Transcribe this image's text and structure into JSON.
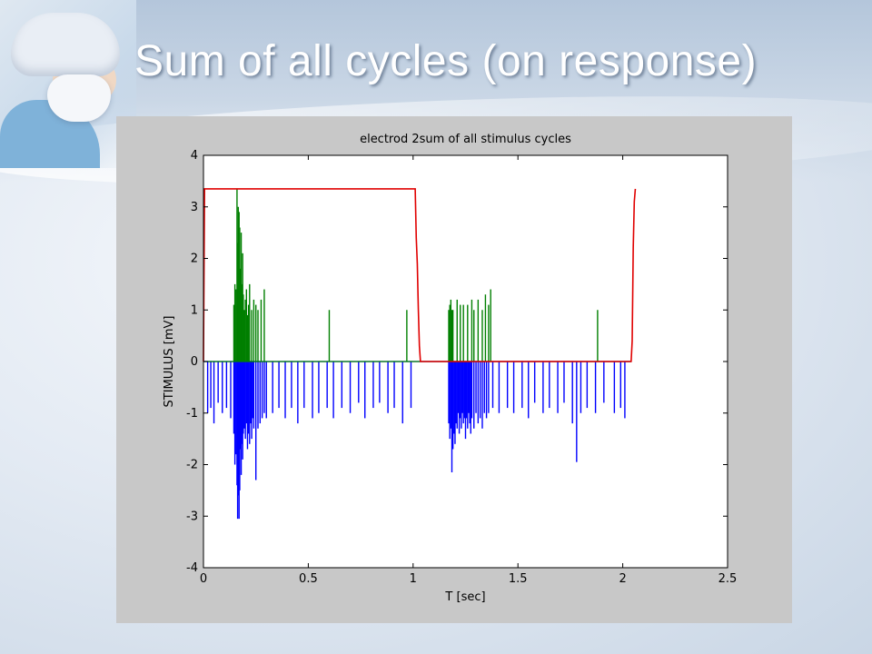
{
  "slide": {
    "title": "Sum of all cycles (on response)"
  },
  "chart_data": {
    "type": "line",
    "title": "electrod 2sum of all stimulus cycles",
    "xlabel": "T [sec]",
    "ylabel": "STIMULUS [mV]",
    "xlim": [
      0,
      2.5
    ],
    "ylim": [
      -4,
      4
    ],
    "xticks": [
      0,
      0.5,
      1,
      1.5,
      2,
      2.5
    ],
    "xtick_labels": [
      "0",
      "0.5",
      "1",
      "1.5",
      "2",
      "2.5"
    ],
    "yticks": [
      4,
      3,
      2,
      1,
      0,
      -1,
      -2,
      -3,
      -4
    ],
    "ytick_labels": [
      "4",
      "3",
      "2",
      "1",
      "0",
      "-1",
      "-2",
      "-3",
      "-4"
    ],
    "grid": false,
    "legend": "none",
    "colors": {
      "red": "#e00000",
      "green": "#007f00",
      "blue": "#0000ff",
      "plot_bg": "#ffffff",
      "figure_bg": "#c8c8c8"
    },
    "series": [
      {
        "color": "#e00000",
        "x": [
          0,
          0.005,
          0.01,
          1.0,
          1.01,
          1.015,
          1.02,
          1.025,
          1.03,
          1.035,
          1.04,
          2.04,
          2.045,
          2.05,
          2.055,
          2.06
        ],
        "y": [
          0,
          3.35,
          3.35,
          3.35,
          3.35,
          2.4,
          1.9,
          1.0,
          0.3,
          0,
          0,
          0,
          0.4,
          2.2,
          3.1,
          3.35
        ]
      },
      {
        "color": "#007f00",
        "baseline": 0,
        "impulses": [
          [
            0.145,
            1.1
          ],
          [
            0.15,
            1.5
          ],
          [
            0.155,
            1.4
          ],
          [
            0.16,
            3.35
          ],
          [
            0.163,
            2.3
          ],
          [
            0.166,
            3.0
          ],
          [
            0.17,
            2.9
          ],
          [
            0.173,
            2.6
          ],
          [
            0.177,
            1.8
          ],
          [
            0.18,
            2.5
          ],
          [
            0.183,
            1.5
          ],
          [
            0.187,
            2.1
          ],
          [
            0.19,
            1.3
          ],
          [
            0.195,
            1.0
          ],
          [
            0.2,
            1.2
          ],
          [
            0.205,
            1.4
          ],
          [
            0.21,
            0.9
          ],
          [
            0.215,
            1.1
          ],
          [
            0.22,
            1.5
          ],
          [
            0.23,
            1.0
          ],
          [
            0.24,
            1.2
          ],
          [
            0.25,
            1.1
          ],
          [
            0.26,
            1.0
          ],
          [
            0.275,
            1.2
          ],
          [
            0.29,
            1.4
          ],
          [
            0.6,
            1.0
          ],
          [
            0.97,
            1.0
          ],
          [
            1.17,
            1.0
          ],
          [
            1.175,
            1.1
          ],
          [
            1.18,
            1.2
          ],
          [
            1.185,
            1.0
          ],
          [
            1.19,
            1.0
          ],
          [
            1.21,
            1.2
          ],
          [
            1.225,
            1.1
          ],
          [
            1.24,
            1.1
          ],
          [
            1.26,
            1.1
          ],
          [
            1.28,
            1.2
          ],
          [
            1.29,
            1.0
          ],
          [
            1.31,
            1.2
          ],
          [
            1.33,
            1.0
          ],
          [
            1.345,
            1.3
          ],
          [
            1.36,
            1.1
          ],
          [
            1.37,
            1.4
          ],
          [
            1.88,
            1.0
          ]
        ]
      },
      {
        "color": "#0000ff",
        "baseline": 0,
        "impulses": [
          [
            0.02,
            -1.0
          ],
          [
            0.035,
            -0.9
          ],
          [
            0.05,
            -1.2
          ],
          [
            0.07,
            -0.8
          ],
          [
            0.09,
            -1.0
          ],
          [
            0.11,
            -0.9
          ],
          [
            0.13,
            -1.1
          ],
          [
            0.145,
            -1.4
          ],
          [
            0.15,
            -2.0
          ],
          [
            0.155,
            -1.8
          ],
          [
            0.16,
            -2.4
          ],
          [
            0.163,
            -3.05
          ],
          [
            0.166,
            -2.6
          ],
          [
            0.17,
            -3.05
          ],
          [
            0.173,
            -2.5
          ],
          [
            0.177,
            -1.7
          ],
          [
            0.18,
            -2.2
          ],
          [
            0.183,
            -1.6
          ],
          [
            0.187,
            -1.9
          ],
          [
            0.19,
            -1.4
          ],
          [
            0.195,
            -1.3
          ],
          [
            0.2,
            -1.5
          ],
          [
            0.205,
            -1.2
          ],
          [
            0.21,
            -1.7
          ],
          [
            0.215,
            -1.4
          ],
          [
            0.22,
            -1.6
          ],
          [
            0.225,
            -1.2
          ],
          [
            0.23,
            -1.5
          ],
          [
            0.235,
            -1.1
          ],
          [
            0.24,
            -1.3
          ],
          [
            0.25,
            -2.3
          ],
          [
            0.26,
            -1.3
          ],
          [
            0.27,
            -1.2
          ],
          [
            0.28,
            -1.1
          ],
          [
            0.29,
            -1.0
          ],
          [
            0.3,
            -1.1
          ],
          [
            0.33,
            -1.0
          ],
          [
            0.36,
            -0.9
          ],
          [
            0.39,
            -1.1
          ],
          [
            0.42,
            -0.9
          ],
          [
            0.45,
            -1.2
          ],
          [
            0.48,
            -0.9
          ],
          [
            0.52,
            -1.1
          ],
          [
            0.55,
            -1.0
          ],
          [
            0.59,
            -0.9
          ],
          [
            0.62,
            -1.1
          ],
          [
            0.66,
            -0.9
          ],
          [
            0.7,
            -1.0
          ],
          [
            0.74,
            -0.8
          ],
          [
            0.77,
            -1.1
          ],
          [
            0.81,
            -0.9
          ],
          [
            0.84,
            -0.8
          ],
          [
            0.88,
            -1.0
          ],
          [
            0.91,
            -0.9
          ],
          [
            0.95,
            -1.2
          ],
          [
            0.99,
            -0.9
          ],
          [
            1.17,
            -1.2
          ],
          [
            1.175,
            -1.5
          ],
          [
            1.18,
            -1.3
          ],
          [
            1.185,
            -2.15
          ],
          [
            1.19,
            -1.7
          ],
          [
            1.195,
            -1.4
          ],
          [
            1.2,
            -1.6
          ],
          [
            1.205,
            -1.2
          ],
          [
            1.21,
            -1.3
          ],
          [
            1.215,
            -1.0
          ],
          [
            1.22,
            -1.4
          ],
          [
            1.225,
            -1.1
          ],
          [
            1.23,
            -1.3
          ],
          [
            1.235,
            -1.0
          ],
          [
            1.24,
            -1.2
          ],
          [
            1.245,
            -1.1
          ],
          [
            1.25,
            -1.5
          ],
          [
            1.255,
            -1.1
          ],
          [
            1.26,
            -1.3
          ],
          [
            1.265,
            -1.0
          ],
          [
            1.27,
            -1.2
          ],
          [
            1.275,
            -1.4
          ],
          [
            1.28,
            -1.1
          ],
          [
            1.29,
            -1.3
          ],
          [
            1.3,
            -1.0
          ],
          [
            1.31,
            -1.2
          ],
          [
            1.32,
            -1.1
          ],
          [
            1.33,
            -1.3
          ],
          [
            1.34,
            -1.0
          ],
          [
            1.35,
            -1.1
          ],
          [
            1.36,
            -1.0
          ],
          [
            1.38,
            -0.9
          ],
          [
            1.41,
            -1.0
          ],
          [
            1.45,
            -0.9
          ],
          [
            1.48,
            -1.0
          ],
          [
            1.52,
            -0.9
          ],
          [
            1.55,
            -1.1
          ],
          [
            1.58,
            -0.8
          ],
          [
            1.62,
            -1.0
          ],
          [
            1.65,
            -0.9
          ],
          [
            1.69,
            -1.0
          ],
          [
            1.72,
            -0.8
          ],
          [
            1.76,
            -1.2
          ],
          [
            1.78,
            -1.95
          ],
          [
            1.8,
            -1.0
          ],
          [
            1.83,
            -0.9
          ],
          [
            1.87,
            -1.0
          ],
          [
            1.91,
            -0.8
          ],
          [
            1.96,
            -1.0
          ],
          [
            1.99,
            -0.9
          ],
          [
            2.01,
            -1.1
          ]
        ]
      }
    ]
  }
}
